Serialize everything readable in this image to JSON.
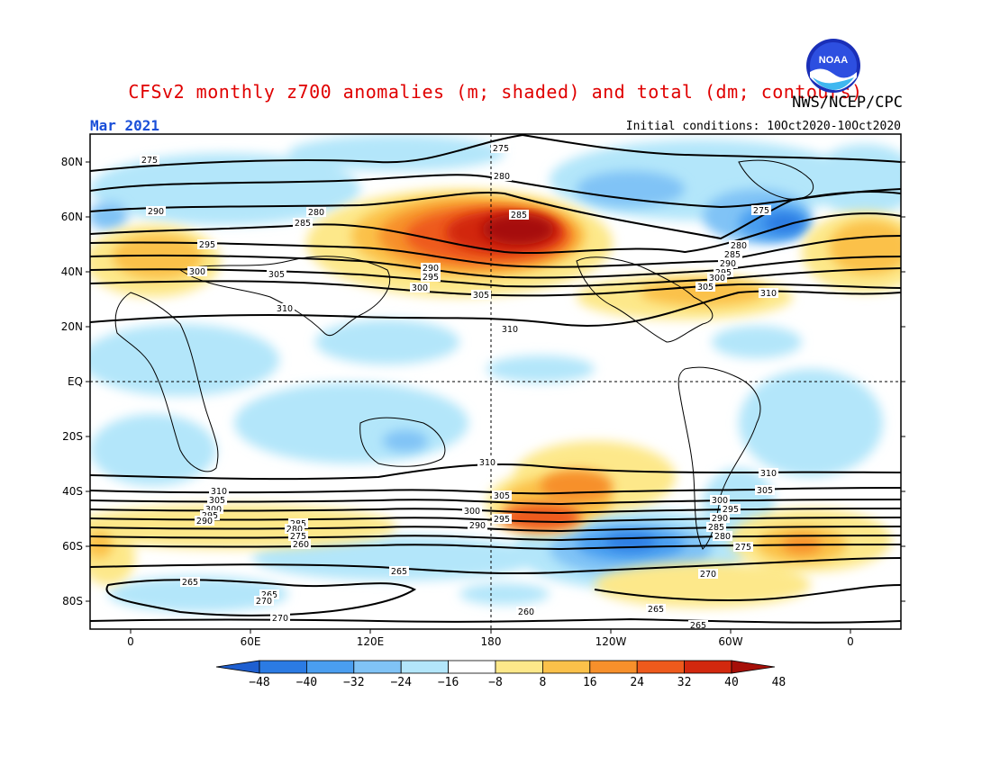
{
  "title": "CFSv2 monthly z700 anomalies (m; shaded) and total (dm; contours)",
  "agency": "NWS/NCEP/CPC",
  "month": "Mar 2021",
  "initial_conditions": "Initial conditions: 10Oct2020-10Oct2020",
  "logo_text": "NOAA",
  "colors": {
    "title": "#e00000",
    "month": "#1a4fd8"
  },
  "map": {
    "lat_labels": [
      "80N",
      "60N",
      "40N",
      "20N",
      "EQ",
      "20S",
      "40S",
      "60S",
      "80S"
    ],
    "lon_labels": [
      "0",
      "60E",
      "120E",
      "180",
      "120W",
      "60W",
      "0"
    ]
  },
  "colorbar": {
    "levels": [
      "-48",
      "-40",
      "-32",
      "-24",
      "-16",
      "-8",
      "8",
      "16",
      "24",
      "32",
      "40",
      "48"
    ],
    "colors": [
      "#1e5fd0",
      "#2b7be3",
      "#4a9ef0",
      "#80c3f6",
      "#b3e6fa",
      "#ffffff",
      "#fde88a",
      "#fbc14a",
      "#f7902b",
      "#ee5a1c",
      "#d2280e",
      "#a60f08"
    ]
  },
  "contour_labels": [
    "275",
    "280",
    "285",
    "290",
    "295",
    "300",
    "305",
    "310",
    "265",
    "270",
    "260"
  ]
}
